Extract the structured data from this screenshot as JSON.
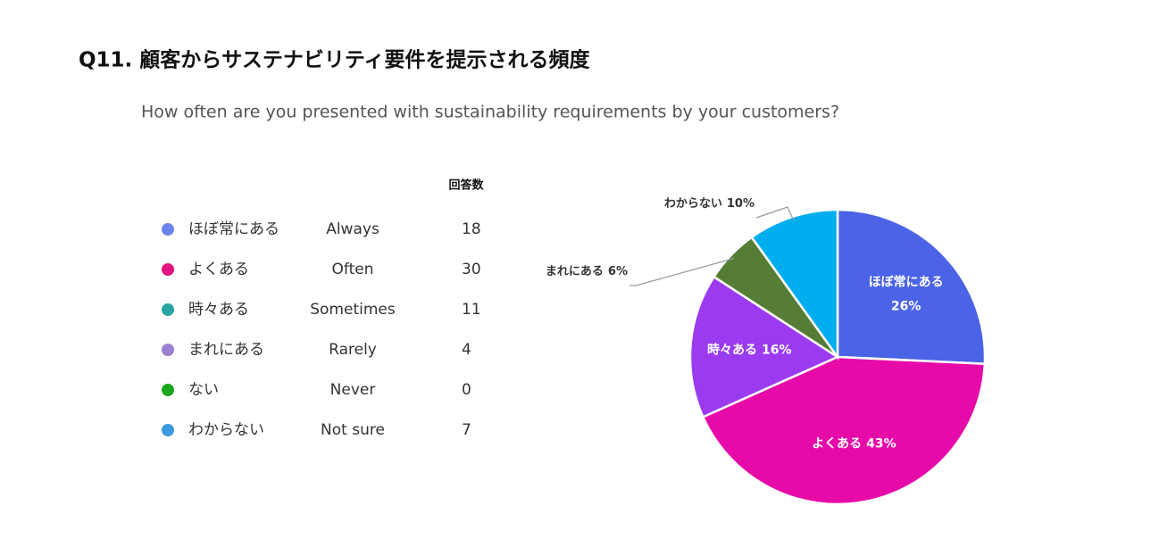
{
  "chart_data": {
    "type": "pie",
    "title": "Q11. 顧客からサステナビリティ要件を提示される頻度",
    "subtitle": "How often are you presented with sustainability requirements by your customers?",
    "legend": {
      "header": "回答数",
      "rows": [
        {
          "name": "ほぼ常にある",
          "english": "Always",
          "count": 18,
          "color": "#6b84ea"
        },
        {
          "name": "よくある",
          "english": "Often",
          "count": 30,
          "color": "#e0157f"
        },
        {
          "name": "時々ある",
          "english": "Sometimes",
          "count": 11,
          "color": "#2ba3a3"
        },
        {
          "name": "まれにある",
          "english": "Rarely",
          "count": 4,
          "color": "#9b7fd0"
        },
        {
          "name": "ない",
          "english": "Never",
          "count": 0,
          "color": "#1ba61b"
        },
        {
          "name": "わからない",
          "english": "Not sure",
          "count": 7,
          "color": "#3d9ae0"
        }
      ]
    },
    "categories": [
      "ほぼ常にある",
      "よくある",
      "時々ある",
      "まれにある",
      "わからない"
    ],
    "values": [
      26,
      43,
      16,
      6,
      10
    ],
    "value_labels": [
      "26%",
      "43%",
      "16%",
      "6%",
      "10%"
    ],
    "colors": [
      "#4b63e6",
      "#e60aa8",
      "#9b3bf0",
      "#557d35",
      "#00adef"
    ]
  }
}
